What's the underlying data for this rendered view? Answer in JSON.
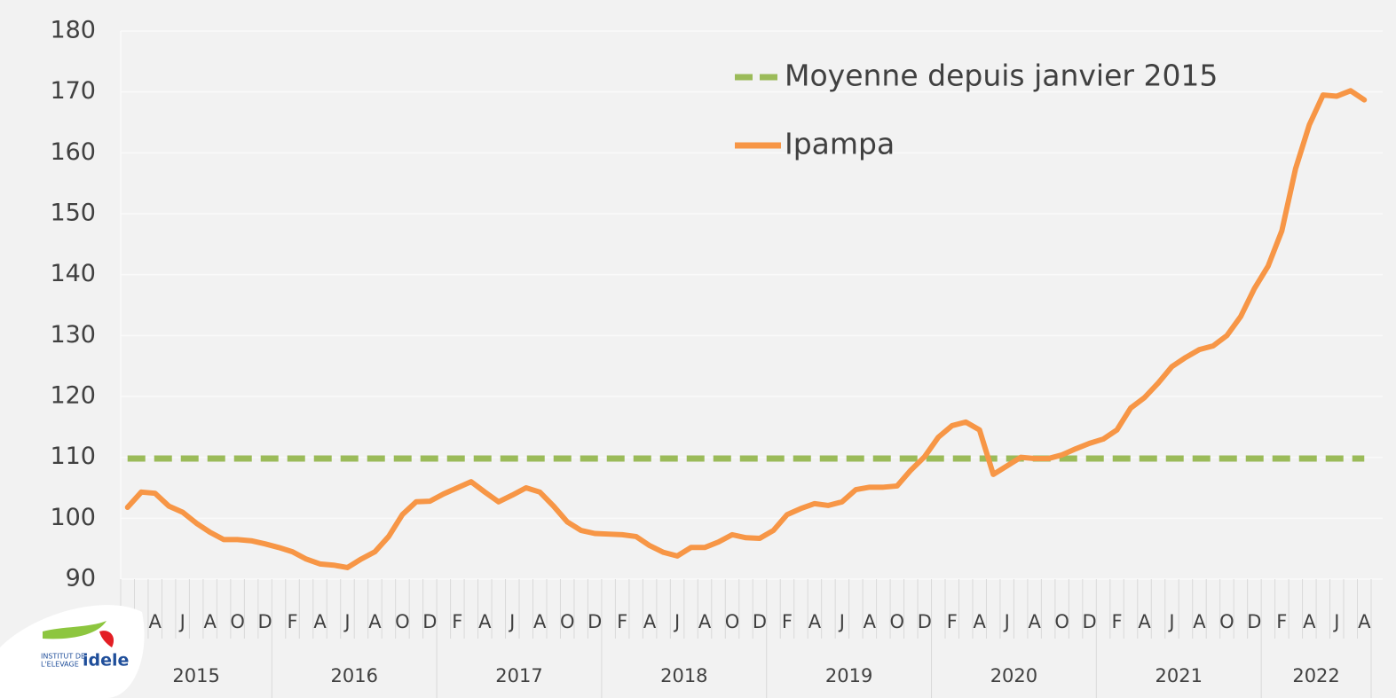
{
  "chart_data": {
    "type": "line",
    "categories": [
      null,
      null,
      "A",
      null,
      "J",
      null,
      "A",
      null,
      "O",
      null,
      "D",
      null,
      "F",
      null,
      "A",
      null,
      "J",
      null,
      "A",
      null,
      "O",
      null,
      "D",
      null,
      "F",
      null,
      "A",
      null,
      "J",
      null,
      "A",
      null,
      "O",
      null,
      "D",
      null,
      "F",
      null,
      "A",
      null,
      "J",
      null,
      "A",
      null,
      "O",
      null,
      "D",
      null,
      "F",
      null,
      "A",
      null,
      "J",
      null,
      "A",
      null,
      "O",
      null,
      "D",
      null,
      "F",
      null,
      "A",
      null,
      "J",
      null,
      "A",
      null,
      "O",
      null,
      "D",
      null,
      "F",
      null,
      "A",
      null,
      "J",
      null,
      "A",
      null,
      "O",
      null,
      "D",
      null,
      "F",
      null,
      "A",
      null,
      "J",
      null,
      "A"
    ],
    "years": [
      "2015",
      "2016",
      "2017",
      "2018",
      "2019",
      "2020",
      "2021",
      "2022"
    ],
    "series": [
      {
        "name": "Moyenne depuis janvier 2015",
        "color": "#9bbb59",
        "dashed": true,
        "value": 109.8
      },
      {
        "name": "Ipampa",
        "color": "#f79646",
        "dashed": false,
        "values": [
          101.8,
          104.3,
          104.1,
          102,
          101,
          99.2,
          97.7,
          96.5,
          96.5,
          96.3,
          95.8,
          95.2,
          94.5,
          93.3,
          92.5,
          92.3,
          91.9,
          93.3,
          94.5,
          97,
          100.6,
          102.7,
          102.8,
          104,
          105,
          106,
          104.3,
          102.7,
          103.8,
          105,
          104.3,
          102,
          99.4,
          98,
          97.5,
          97.4,
          97.3,
          97,
          95.5,
          94.4,
          93.8,
          95.2,
          95.2,
          96.1,
          97.3,
          96.8,
          96.7,
          98,
          100.6,
          101.6,
          102.4,
          102.1,
          102.7,
          104.7,
          105.1,
          105.1,
          105.3,
          107.9,
          110.1,
          113.3,
          115.2,
          115.8,
          114.5,
          107.2,
          108.6,
          110,
          109.8,
          109.8,
          110.4,
          111.4,
          112.3,
          113,
          114.5,
          118.1,
          119.8,
          122.2,
          124.9,
          126.4,
          127.7,
          128.3,
          130,
          133.1,
          137.7,
          141.4,
          147.2,
          157.4,
          164.6,
          169.5,
          169.3,
          170.2,
          168.7
        ]
      }
    ],
    "ylim": [
      90,
      180
    ],
    "yticks": [
      90,
      100,
      110,
      120,
      130,
      140,
      150,
      160,
      170,
      180
    ],
    "grid": true
  },
  "logo": {
    "line1": "INSTITUT DE",
    "line2": "L'ELEVAGE",
    "brand": "idele"
  }
}
